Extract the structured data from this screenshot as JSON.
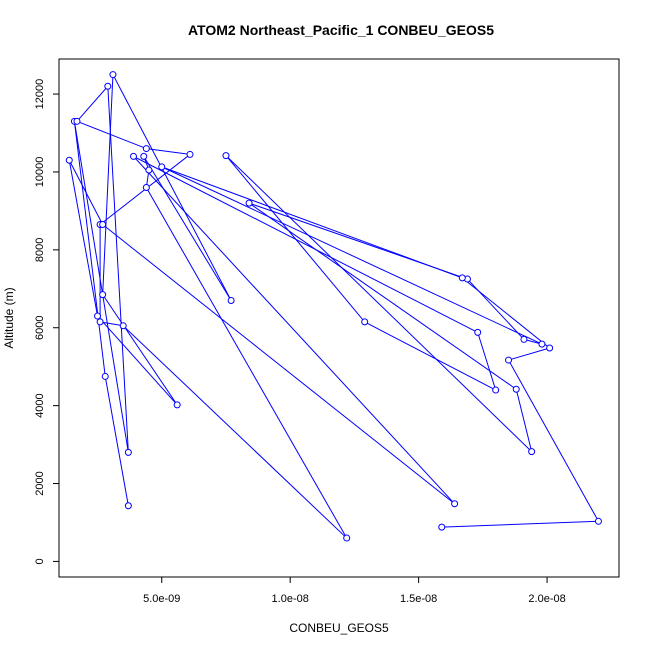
{
  "chart_data": {
    "type": "line",
    "title": "ATOM2 Northeast_Pacific_1 CONBEU_GEOS5",
    "xlabel": "CONBEU_GEOS5",
    "ylabel": "Altitude (m)",
    "xlim": [
      1e-09,
      2.28e-08
    ],
    "ylim": [
      -400,
      12900
    ],
    "x_ticks": [
      {
        "value": 5e-09,
        "label": "5.0e-09"
      },
      {
        "value": 1e-08,
        "label": "1.0e-08"
      },
      {
        "value": 1.5e-08,
        "label": "1.5e-08"
      },
      {
        "value": 2e-08,
        "label": "2.0e-08"
      }
    ],
    "y_ticks": [
      {
        "value": 0,
        "label": "0"
      },
      {
        "value": 2000,
        "label": "2000"
      },
      {
        "value": 4000,
        "label": "4000"
      },
      {
        "value": 6000,
        "label": "6000"
      },
      {
        "value": 8000,
        "label": "8000"
      },
      {
        "value": 10000,
        "label": "10000"
      },
      {
        "value": 12000,
        "label": "12000"
      }
    ],
    "grid": false,
    "color": "#0000ff",
    "series": [
      {
        "marker": "circle",
        "x": [
          3.7e-09,
          2.8e-09,
          1.6e-09,
          3.7e-09,
          2.9e-09,
          1.7e-09,
          4.4e-09,
          6.1e-09,
          2.6e-09,
          2.6e-09,
          3.5e-09,
          1.22e-08,
          4.4e-09,
          4.5e-09,
          4.3e-09,
          7.7e-09,
          3.1e-09,
          2.7e-09,
          5.6e-09,
          2.5e-09,
          1.4e-09,
          2.7e-09,
          1.64e-08,
          3.9e-09,
          1.73e-08,
          1.8e-08,
          1.29e-08,
          7.5e-09,
          1.94e-08,
          1.88e-08,
          8.4e-09,
          1.69e-08,
          1.91e-08,
          1.98e-08,
          5e-09,
          1.67e-08,
          2.01e-08,
          1.85e-08,
          2.2e-08,
          1.59e-08
        ],
        "y": [
          1430,
          4750,
          11300,
          2800,
          12200,
          11300,
          10600,
          10450,
          8650,
          6150,
          6050,
          600,
          9600,
          10050,
          10400,
          6700,
          12500,
          6850,
          4020,
          6300,
          10300,
          8650,
          1480,
          10400,
          5880,
          4400,
          6150,
          10420,
          2820,
          4420,
          9200,
          7250,
          5700,
          5580,
          10130,
          7280,
          5480,
          5170,
          1030,
          880
        ]
      }
    ]
  }
}
